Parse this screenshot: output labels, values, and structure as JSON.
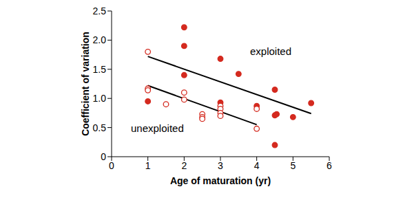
{
  "chart_data": {
    "type": "scatter",
    "x_label": "Age of maturation (yr)",
    "y_label": "Coefficient of variation",
    "xlim": [
      0,
      6
    ],
    "xticks": [
      0,
      1,
      2,
      3,
      4,
      5,
      6
    ],
    "ylim": [
      0,
      2.5
    ],
    "yticks": [
      0,
      0.5,
      {
        "value": 1,
        "label": "1.0"
      },
      1.5,
      {
        "value": 2,
        "label": "2.0"
      },
      2.5
    ],
    "series": [
      {
        "name": "exploited",
        "color": "#d42a1f",
        "marker": "filled circle",
        "x": [
          1,
          2,
          2,
          2,
          3,
          3,
          3.5,
          4,
          4.5,
          4.5,
          4.55,
          4.5,
          5,
          5.5
        ],
        "values": [
          0.95,
          2.22,
          1.9,
          1.4,
          1.68,
          0.93,
          1.42,
          0.87,
          1.15,
          0.71,
          0.73,
          0.2,
          0.68,
          0.92
        ],
        "fit": {
          "x": [
            1,
            5.5
          ],
          "values": [
            1.72,
            0.74
          ]
        }
      },
      {
        "name": "unexploited",
        "color": "#d42a1f",
        "marker": "open circle",
        "x": [
          1,
          1,
          1,
          1.5,
          2,
          2,
          2.5,
          2.5,
          2.5,
          3,
          3,
          3,
          3,
          4,
          4
        ],
        "values": [
          1.8,
          1.17,
          1.14,
          0.9,
          1.1,
          0.98,
          0.73,
          0.68,
          0.65,
          0.87,
          0.82,
          0.75,
          0.7,
          0.82,
          0.48
        ],
        "fit": {
          "x": [
            1,
            4
          ],
          "values": [
            1.22,
            0.55
          ]
        }
      }
    ]
  }
}
